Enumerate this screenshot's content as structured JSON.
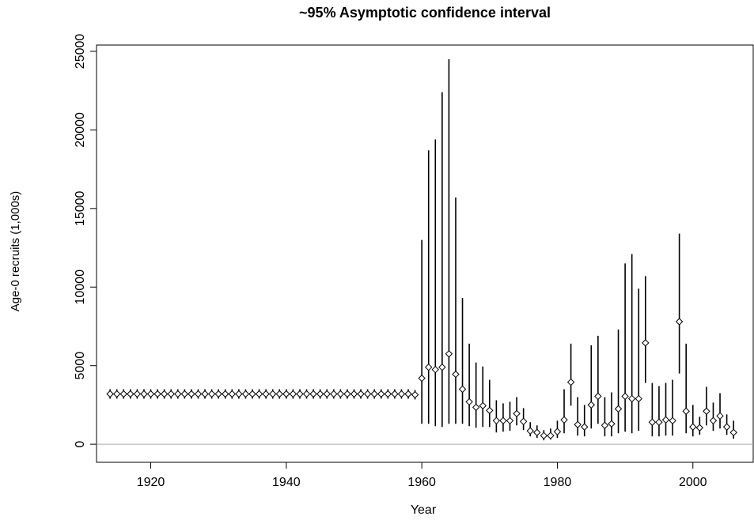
{
  "chart_data": {
    "type": "errorbar",
    "title": "~95% Asymptotic confidence interval",
    "x_label": "Year",
    "y_label": "Age-0 recruits (1,000s)",
    "x": [
      1914,
      1915,
      1916,
      1917,
      1918,
      1919,
      1920,
      1921,
      1922,
      1923,
      1924,
      1925,
      1926,
      1927,
      1928,
      1929,
      1930,
      1931,
      1932,
      1933,
      1934,
      1935,
      1936,
      1937,
      1938,
      1939,
      1940,
      1941,
      1942,
      1943,
      1944,
      1945,
      1946,
      1947,
      1948,
      1949,
      1950,
      1951,
      1952,
      1953,
      1954,
      1955,
      1956,
      1957,
      1958,
      1959,
      1960,
      1961,
      1962,
      1963,
      1964,
      1965,
      1966,
      1967,
      1968,
      1969,
      1970,
      1971,
      1972,
      1973,
      1974,
      1975,
      1976,
      1977,
      1978,
      1979,
      1980,
      1981,
      1982,
      1983,
      1984,
      1985,
      1986,
      1987,
      1988,
      1989,
      1990,
      1991,
      1992,
      1993,
      1994,
      1995,
      1996,
      1997,
      1998,
      1999,
      2000,
      2001,
      2002,
      2003,
      2004,
      2005,
      2006
    ],
    "series": [
      {
        "color": "#000000",
        "values": [
          3200,
          3200,
          3200,
          3200,
          3200,
          3200,
          3200,
          3200,
          3200,
          3200,
          3200,
          3200,
          3200,
          3200,
          3200,
          3200,
          3200,
          3200,
          3200,
          3200,
          3200,
          3200,
          3200,
          3200,
          3200,
          3200,
          3200,
          3200,
          3200,
          3200,
          3200,
          3200,
          3200,
          3200,
          3200,
          3200,
          3200,
          3200,
          3200,
          3200,
          3200,
          3200,
          3200,
          3200,
          3200,
          3150,
          4200,
          4900,
          4750,
          4900,
          5750,
          4450,
          3500,
          2700,
          2350,
          2450,
          2150,
          1500,
          1500,
          1500,
          1950,
          1450,
          850,
          750,
          550,
          550,
          800,
          1550,
          3950,
          1250,
          1100,
          2500,
          3050,
          1200,
          1300,
          2250,
          3050,
          2900,
          2900,
          6450,
          1400,
          1400,
          1550,
          1500,
          7800,
          2100,
          1100,
          1050,
          2100,
          1500,
          1800,
          1100,
          750
        ],
        "lower": [
          2900,
          2900,
          2900,
          2900,
          2900,
          2900,
          2900,
          2900,
          2900,
          2900,
          2900,
          2900,
          2900,
          2900,
          2900,
          2900,
          2900,
          2900,
          2900,
          2900,
          2900,
          2900,
          2900,
          2900,
          2900,
          2900,
          2900,
          2900,
          2900,
          2900,
          2900,
          2900,
          2900,
          2900,
          2900,
          2900,
          2900,
          2900,
          2900,
          2900,
          2900,
          2900,
          2900,
          2900,
          2900,
          2850,
          1300,
          1300,
          1150,
          1100,
          1300,
          1300,
          1300,
          1150,
          1050,
          1100,
          1100,
          750,
          800,
          850,
          1200,
          900,
          500,
          400,
          250,
          300,
          400,
          700,
          2450,
          550,
          500,
          1000,
          1300,
          500,
          500,
          700,
          800,
          700,
          850,
          3900,
          500,
          500,
          550,
          550,
          4500,
          700,
          500,
          600,
          1200,
          850,
          1000,
          600,
          350
        ],
        "upper": [
          3500,
          3500,
          3500,
          3500,
          3500,
          3500,
          3500,
          3500,
          3500,
          3500,
          3500,
          3500,
          3500,
          3500,
          3500,
          3500,
          3500,
          3500,
          3500,
          3500,
          3500,
          3500,
          3500,
          3500,
          3500,
          3500,
          3500,
          3500,
          3500,
          3500,
          3500,
          3500,
          3500,
          3500,
          3500,
          3500,
          3500,
          3500,
          3500,
          3500,
          3500,
          3500,
          3500,
          3500,
          3500,
          3450,
          13000,
          18700,
          19400,
          22400,
          24500,
          15700,
          9300,
          6400,
          5200,
          4950,
          4100,
          2800,
          2600,
          2700,
          3000,
          2300,
          1400,
          1200,
          900,
          1000,
          1500,
          3500,
          6400,
          3000,
          2500,
          6300,
          6900,
          3000,
          3300,
          7300,
          11500,
          12100,
          9900,
          10700,
          3900,
          3700,
          3900,
          4100,
          13400,
          6400,
          2500,
          1750,
          3650,
          2650,
          3250,
          1900,
          1500
        ]
      }
    ],
    "xlim": [
      1912,
      2008.9
    ],
    "ylim": [
      -1150,
      25400
    ],
    "xticks": [
      1920,
      1940,
      1960,
      1980,
      2000
    ],
    "yticks": [
      0,
      5000,
      10000,
      15000,
      20000,
      25000
    ],
    "reference_line": 0,
    "reference_color": "#aaaaaa"
  }
}
